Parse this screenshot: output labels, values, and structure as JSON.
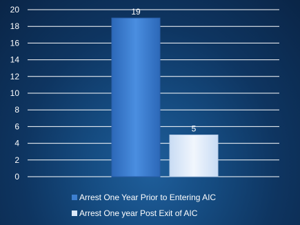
{
  "chart_data": {
    "type": "bar",
    "title": "",
    "xlabel": "",
    "ylabel": "",
    "ylim": [
      0,
      20
    ],
    "yticks": [
      "0",
      "2",
      "4",
      "6",
      "8",
      "10",
      "12",
      "14",
      "16",
      "18",
      "20"
    ],
    "grid": true,
    "legend_position": "bottom",
    "series": [
      {
        "name": "Arrest One Year Prior to Entering AIC",
        "value": 19,
        "label": "19",
        "color": "#3d7fd0"
      },
      {
        "name": "Arrest One year Post Exit of AIC",
        "value": 5,
        "label": "5",
        "color": "#dce8f8"
      }
    ]
  }
}
